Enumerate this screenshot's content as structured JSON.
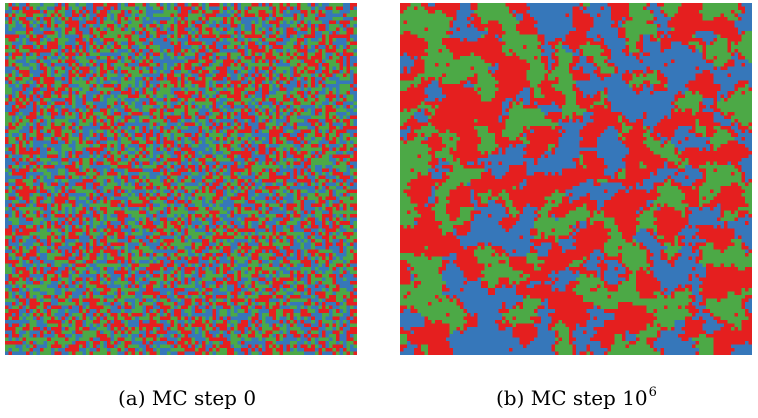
{
  "colors": {
    "red": "#e51f1f",
    "blue": "#3677ba",
    "green": "#4ca946"
  },
  "panels": [
    {
      "id": "a",
      "caption_prefix": "(a) MC step ",
      "caption_value": "0",
      "caption_exponent": "",
      "state": "random"
    },
    {
      "id": "b",
      "caption_prefix": "(b) MC step ",
      "caption_value": "10",
      "caption_exponent": "6",
      "state": "coarsened"
    }
  ],
  "lattice": {
    "size": 100,
    "species": [
      "red",
      "blue",
      "green"
    ]
  }
}
